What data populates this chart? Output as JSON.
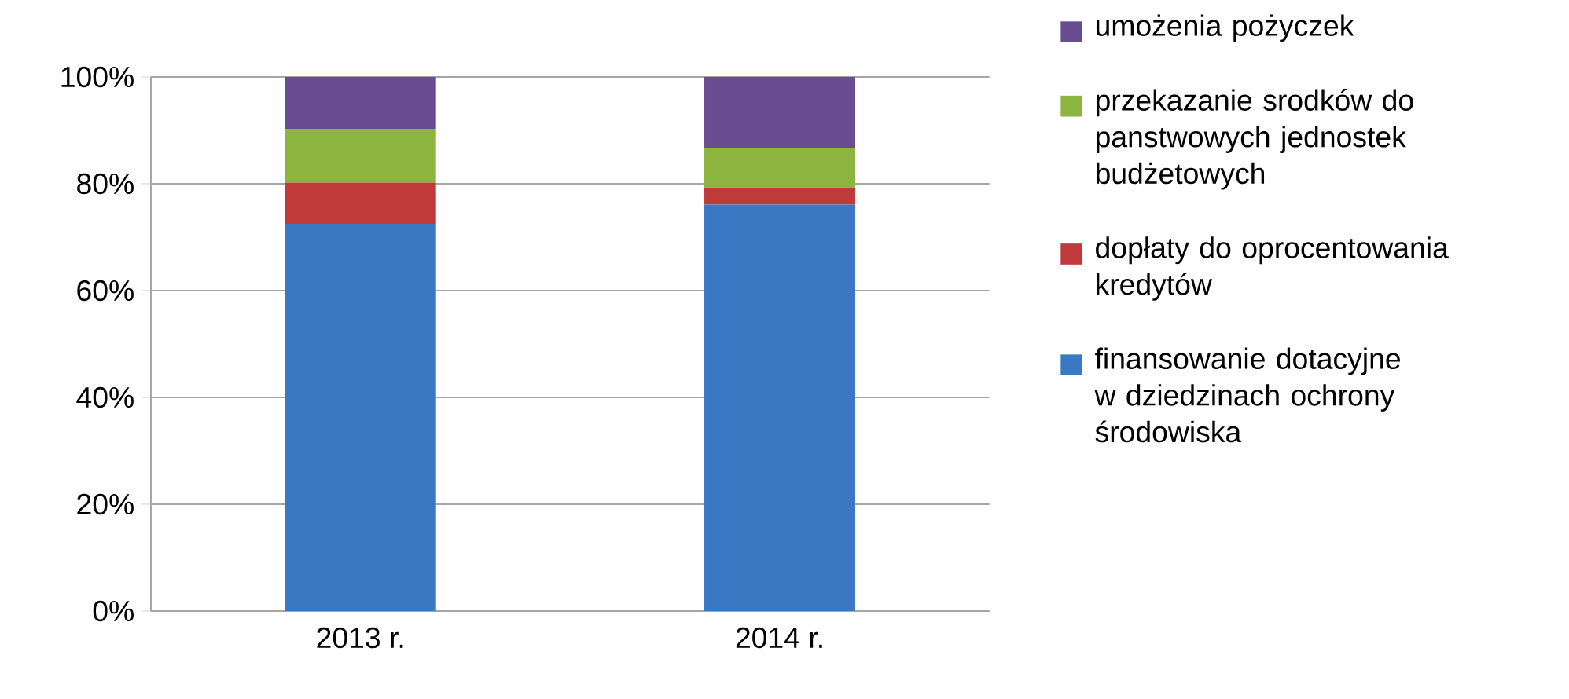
{
  "chart_data": {
    "type": "bar",
    "stacked": true,
    "categories": [
      "2013 r.",
      "2014 r."
    ],
    "series": [
      {
        "name": "finansowanie dotacyjne w dziedzinach ochrony środowiska",
        "color": "#3a78c4",
        "values": [
          72.5,
          76.1
        ]
      },
      {
        "name": "dopłaty do oprocentowania kredytów",
        "color": "#c0393b",
        "values": [
          7.7,
          3.2
        ]
      },
      {
        "name": "przekazanie srodków do panstwowych jednostek budżetowych",
        "color": "#8cb43f",
        "values": [
          10.1,
          7.4
        ]
      },
      {
        "name": "umożenia pożyczek",
        "color": "#6a4c93",
        "values": [
          9.7,
          13.3
        ]
      }
    ],
    "ylim": [
      0,
      100
    ],
    "yticks": [
      {
        "value": 0,
        "label": "0%"
      },
      {
        "value": 20,
        "label": "20%"
      },
      {
        "value": 40,
        "label": "40%"
      },
      {
        "value": 60,
        "label": "60%"
      },
      {
        "value": 80,
        "label": "80%"
      },
      {
        "value": 100,
        "label": "100%"
      }
    ],
    "grid": "y",
    "legend": "right"
  }
}
